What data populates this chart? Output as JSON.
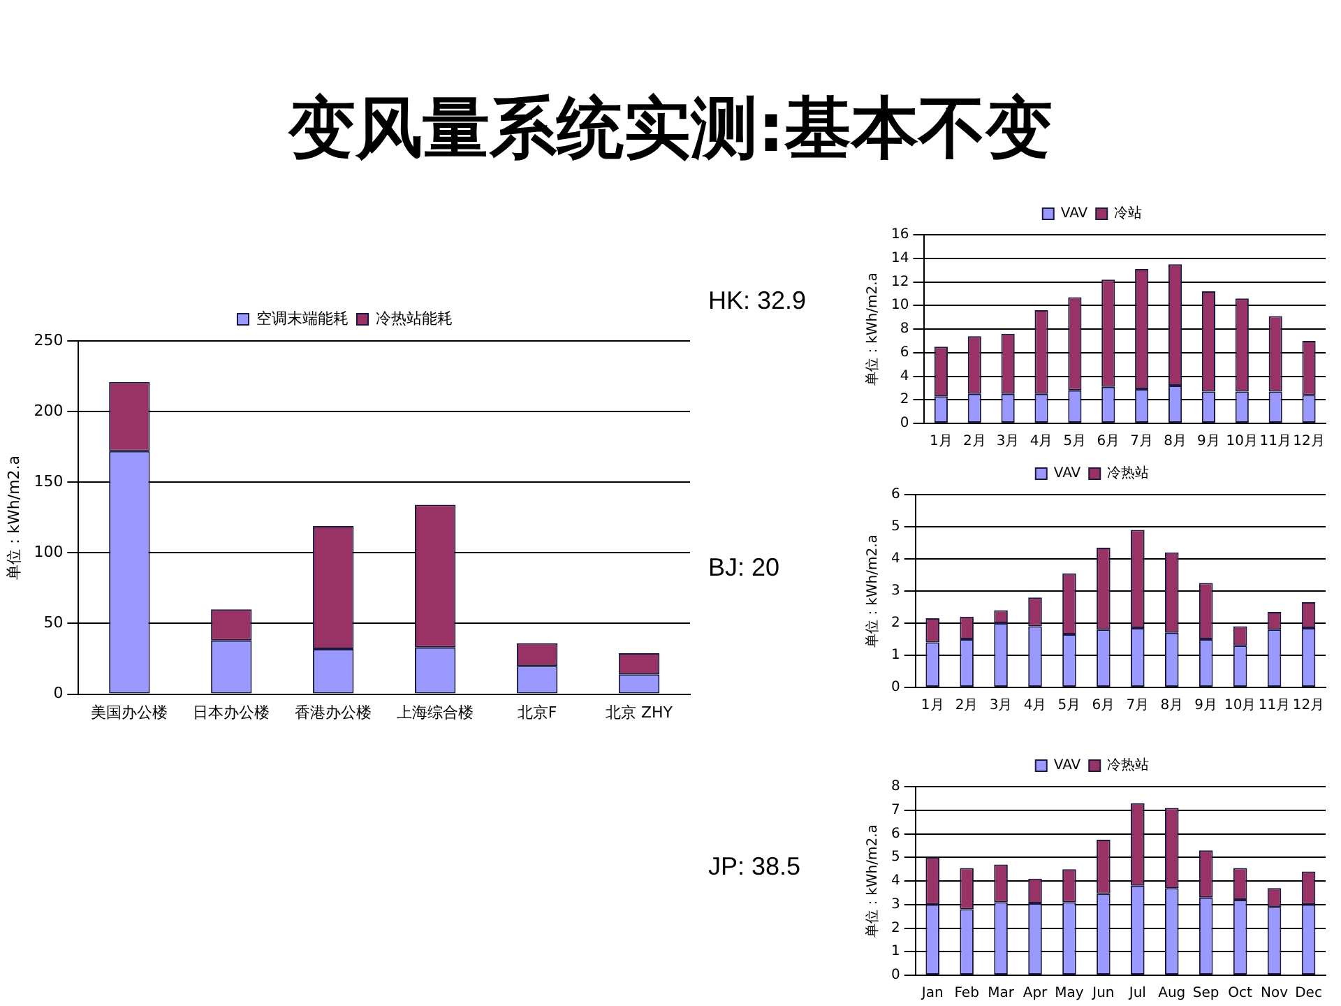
{
  "chart_data": [
    {
      "type": "bar",
      "title": "变风量系统实测:基本不变",
      "ylabel": "单位：kWh/m2.a",
      "categories": [
        "美国办公楼",
        "日本办公楼",
        "香港办公楼",
        "上海综合楼",
        "北京F",
        "北京 ZHY"
      ],
      "stacked": true,
      "grid": "y",
      "legend": "top",
      "ylim": [
        0,
        250
      ],
      "yticks": [
        0,
        50,
        100,
        150,
        200,
        250
      ],
      "series": [
        {
          "name": "空调末端能耗",
          "color": "#9999ff",
          "values": [
            172,
            38,
            32,
            33,
            20,
            14
          ]
        },
        {
          "name": "冷热站能耗",
          "color": "#993366",
          "values": [
            49,
            22,
            87,
            101,
            16,
            15
          ]
        }
      ]
    },
    {
      "type": "bar",
      "annotations": [
        "HK: 32.9"
      ],
      "ylabel": "单位：kWh/m2.a",
      "categories": [
        "1月",
        "2月",
        "3月",
        "4月",
        "5月",
        "6月",
        "7月",
        "8月",
        "9月",
        "10月",
        "11月",
        "12月"
      ],
      "stacked": true,
      "grid": "y",
      "legend": "top",
      "ylim": [
        0,
        16
      ],
      "yticks": [
        0,
        2,
        4,
        6,
        8,
        10,
        12,
        14,
        16
      ],
      "series": [
        {
          "name": "VAV",
          "color": "#9999ff",
          "values": [
            2.3,
            2.5,
            2.5,
            2.5,
            2.8,
            3.1,
            2.9,
            3.2,
            2.7,
            2.7,
            2.7,
            2.4
          ]
        },
        {
          "name": "冷站",
          "color": "#993366",
          "values": [
            4.2,
            4.9,
            5.1,
            7.1,
            7.9,
            9.1,
            10.2,
            10.3,
            8.5,
            7.9,
            6.4,
            4.6
          ]
        }
      ]
    },
    {
      "type": "bar",
      "annotations": [
        "BJ: 20"
      ],
      "ylabel": "单位：kWh/m2.a",
      "categories": [
        "1月",
        "2月",
        "3月",
        "4月",
        "5月",
        "6月",
        "7月",
        "8月",
        "9月",
        "10月",
        "11月",
        "12月"
      ],
      "stacked": true,
      "grid": "y",
      "legend": "top",
      "ylim": [
        0,
        6
      ],
      "yticks": [
        0,
        1,
        2,
        3,
        4,
        5,
        6
      ],
      "series": [
        {
          "name": "VAV",
          "color": "#9999ff",
          "values": [
            1.4,
            1.5,
            2.0,
            1.9,
            1.65,
            1.8,
            1.85,
            1.7,
            1.5,
            1.3,
            1.8,
            1.85
          ]
        },
        {
          "name": "冷热站",
          "color": "#993366",
          "values": [
            0.75,
            0.7,
            0.4,
            0.9,
            1.9,
            2.55,
            3.05,
            2.5,
            1.75,
            0.6,
            0.55,
            0.8
          ]
        }
      ]
    },
    {
      "type": "bar",
      "annotations": [
        "JP: 38.5"
      ],
      "ylabel": "单位：kWh/m2.a",
      "categories": [
        "Jan",
        "Feb",
        "Mar",
        "Apr",
        "May",
        "Jun",
        "Jul",
        "Aug",
        "Sep",
        "Oct",
        "Nov",
        "Dec"
      ],
      "stacked": true,
      "grid": "y",
      "legend": "top",
      "ylim": [
        0,
        8
      ],
      "yticks": [
        0,
        1,
        2,
        3,
        4,
        5,
        6,
        7,
        8
      ],
      "series": [
        {
          "name": "VAV",
          "color": "#9999ff",
          "values": [
            3.0,
            2.8,
            3.1,
            3.05,
            3.1,
            3.45,
            3.8,
            3.7,
            3.3,
            3.2,
            2.9,
            3.0
          ]
        },
        {
          "name": "冷热站",
          "color": "#993366",
          "values": [
            2.0,
            1.75,
            1.6,
            1.05,
            1.4,
            2.3,
            3.5,
            3.4,
            2.0,
            1.35,
            0.8,
            1.4
          ]
        }
      ]
    }
  ]
}
